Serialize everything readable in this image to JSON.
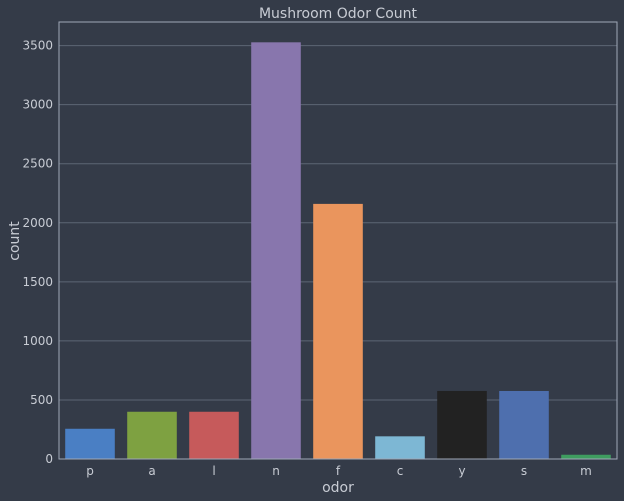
{
  "chart_data": {
    "type": "bar",
    "title": "Mushroom Odor Count",
    "xlabel": "odor",
    "ylabel": "count",
    "categories": [
      "p",
      "a",
      "l",
      "n",
      "f",
      "c",
      "y",
      "s",
      "m"
    ],
    "values": [
      256,
      400,
      400,
      3528,
      2160,
      192,
      576,
      576,
      36
    ],
    "ylim": [
      0,
      3700
    ],
    "yticks": [
      0,
      500,
      1000,
      1500,
      2000,
      2500,
      3000,
      3500
    ],
    "ytick_labels": [
      "0",
      "500",
      "1000",
      "1500",
      "2000",
      "2500",
      "3000",
      "3500"
    ],
    "grid": "y",
    "colors": [
      "#4a7fc4",
      "#7ea141",
      "#c65a5b",
      "#8876ad",
      "#ea955d",
      "#7db7d4",
      "#222222",
      "#4e6fae",
      "#3e9c5f"
    ],
    "background": "#343b48",
    "gridline_color": "#5c6674",
    "frame_color": "#a0a8b8"
  }
}
